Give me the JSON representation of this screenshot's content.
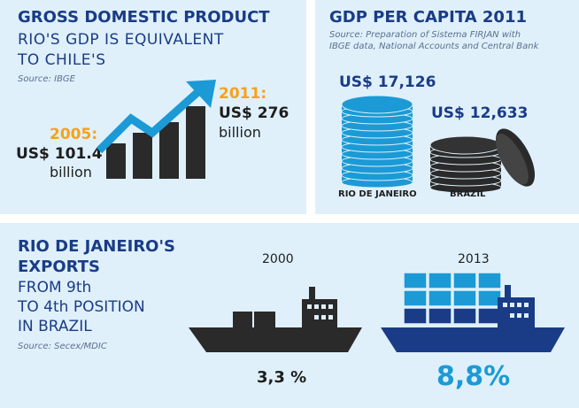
{
  "gdp": {
    "title": "GROSS DOMESTIC PRODUCT",
    "subtitle_line1": "RIO'S GDP IS EQUIVALENT",
    "subtitle_line2": "TO CHILE'S",
    "source": "Source: IBGE",
    "year_2005": "2005:",
    "value_2005": "US$ 101.4",
    "unit_2005": "billion",
    "year_2011": "2011:",
    "value_2011": "US$ 276",
    "unit_2011": "billion"
  },
  "per_capita": {
    "title": "GDP PER CAPITA 2011",
    "source_line1": "Source: Preparation of Sistema FIRJAN with",
    "source_line2": "IBGE data, National Accounts and Central Bank",
    "rio_value": "US$ 17,126",
    "rio_label": "RIO DE JANEIRO",
    "brazil_value": "US$ 12,633",
    "brazil_label": "BRAZIL"
  },
  "exports": {
    "title_line1": "RIO DE JANEIRO'S",
    "title_line2": "EXPORTS",
    "sub_line1": "FROM 9th",
    "sub_line2": "TO 4th POSITION",
    "sub_line3": "IN BRAZIL",
    "source": "Source: Secex/MDIC",
    "year_2000": "2000",
    "year_2013": "2013",
    "share_2000": "3,3 %",
    "share_2013": "8,8%"
  },
  "colors": {
    "navy": "#1a3c86",
    "orange": "#f6a21a",
    "blue": "#1b9ad6",
    "light_panel": "#dff0fb",
    "dark": "#2a2a2a"
  }
}
